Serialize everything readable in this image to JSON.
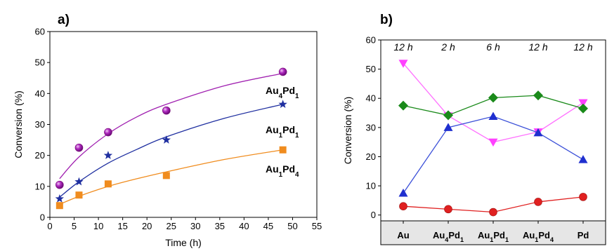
{
  "chart_data": [
    {
      "panel": "a)",
      "type": "scatter",
      "xlabel": "Time (h)",
      "ylabel": "Conversion (%)",
      "xlim": [
        0,
        55
      ],
      "ylim": [
        0,
        60
      ],
      "xticks": [
        0,
        5,
        10,
        15,
        20,
        25,
        30,
        35,
        40,
        45,
        50,
        55
      ],
      "yticks": [
        0,
        10,
        20,
        30,
        40,
        50,
        60
      ],
      "grid": false,
      "series": [
        {
          "name_parts": [
            [
              "Au",
              "4"
            ],
            [
              "Pd",
              "1"
            ]
          ],
          "name": "Au4Pd1",
          "marker": "sphere",
          "color": "#a020b0",
          "x": [
            2,
            6,
            12,
            24,
            48
          ],
          "y": [
            10.5,
            22.5,
            27.5,
            34.5,
            47
          ],
          "fit": [
            [
              2,
              12.5
            ],
            [
              6,
              19.5
            ],
            [
              12,
              27
            ],
            [
              18,
              32.5
            ],
            [
              24,
              36.5
            ],
            [
              36,
              42.5
            ],
            [
              48,
              46.5
            ]
          ]
        },
        {
          "name_parts": [
            [
              "Au",
              "1"
            ],
            [
              "Pd",
              "1"
            ]
          ],
          "name": "Au1Pd1",
          "marker": "star",
          "color": "#1f2fa0",
          "x": [
            2,
            6,
            12,
            24,
            48
          ],
          "y": [
            6,
            11.5,
            20,
            25,
            36.5
          ],
          "fit": [
            [
              2,
              6.5
            ],
            [
              6,
              11.5
            ],
            [
              12,
              17.5
            ],
            [
              18,
              22
            ],
            [
              24,
              26
            ],
            [
              36,
              32
            ],
            [
              48,
              36.5
            ]
          ]
        },
        {
          "name_parts": [
            [
              "Au",
              "1"
            ],
            [
              "Pd",
              "4"
            ]
          ],
          "name": "Au1Pd4",
          "marker": "square",
          "color": "#f08c1e",
          "x": [
            2,
            6,
            12,
            24,
            48
          ],
          "y": [
            3.8,
            7.2,
            10.8,
            13.5,
            21.8
          ],
          "fit": [
            [
              2,
              4.2
            ],
            [
              6,
              6.8
            ],
            [
              12,
              10
            ],
            [
              18,
              12.5
            ],
            [
              24,
              14.7
            ],
            [
              36,
              18.7
            ],
            [
              48,
              21.8
            ]
          ]
        }
      ]
    },
    {
      "panel": "b)",
      "type": "line",
      "ylabel": "Conversion (%)",
      "ylim": [
        -2,
        60
      ],
      "yticks": [
        0,
        10,
        20,
        30,
        40,
        50,
        60
      ],
      "grid": false,
      "categories": [
        {
          "parts": [
            [
              "Au",
              ""
            ]
          ],
          "time": "12 h"
        },
        {
          "parts": [
            [
              "Au",
              "4"
            ],
            [
              "Pd",
              "1"
            ]
          ],
          "time": "2 h"
        },
        {
          "parts": [
            [
              "Au",
              "1"
            ],
            [
              "Pd",
              "1"
            ]
          ],
          "time": "6 h"
        },
        {
          "parts": [
            [
              "Au",
              "1"
            ],
            [
              "Pd",
              "4"
            ]
          ],
          "time": "12 h"
        },
        {
          "parts": [
            [
              "Pd",
              ""
            ]
          ],
          "time": "12 h"
        }
      ],
      "series": [
        {
          "marker": "triangle-down",
          "color": "#ff40ff",
          "line": "#ff70ff",
          "values": [
            52,
            34,
            25,
            28.5,
            38.5
          ]
        },
        {
          "marker": "diamond",
          "color": "#1a8a1a",
          "line": "#1a8a1a",
          "values": [
            37.5,
            34.2,
            40.2,
            41,
            36.5
          ]
        },
        {
          "marker": "triangle-up",
          "color": "#1f2fcf",
          "line": "#3a4fd8",
          "values": [
            7.5,
            30,
            33.8,
            28.2,
            19
          ]
        },
        {
          "marker": "circle",
          "color": "#e02020",
          "line": "#e02020",
          "values": [
            3,
            2,
            1,
            4.5,
            6.2
          ]
        }
      ]
    }
  ]
}
